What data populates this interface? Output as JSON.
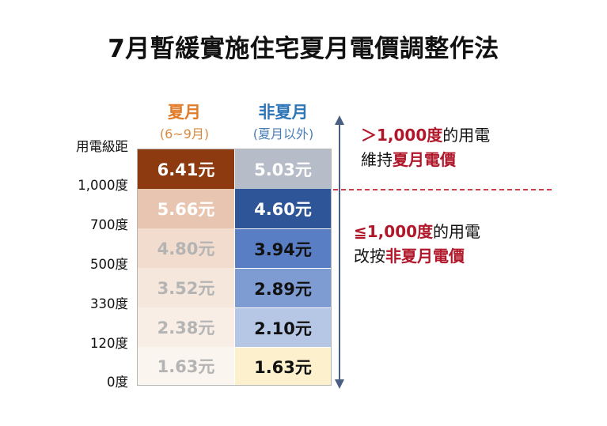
{
  "title": "7月暫緩實施住宅夏月電價調整作法",
  "columns": {
    "summer": {
      "label": "夏月",
      "sub": "(6~9月)"
    },
    "non_summer": {
      "label": "非夏月",
      "sub": "(夏月以外)"
    }
  },
  "tier_header": "用電級距",
  "tiers": [
    "1,000度",
    "700度",
    "500度",
    "330度",
    "120度",
    "0度"
  ],
  "rows": [
    {
      "summer": "6.41元",
      "non_summer": "5.03元"
    },
    {
      "summer": "5.66元",
      "non_summer": "4.60元"
    },
    {
      "summer": "4.80元",
      "non_summer": "3.94元"
    },
    {
      "summer": "3.52元",
      "non_summer": "2.89元"
    },
    {
      "summer": "2.38元",
      "non_summer": "2.10元"
    },
    {
      "summer": "1.63元",
      "non_summer": "1.63元"
    }
  ],
  "note_upper": {
    "prefix": "＞1,000度",
    "line1_rest": "的用電",
    "line2_pre": "維持",
    "line2_emph": "夏月電價"
  },
  "note_lower": {
    "prefix": "≦1,000度",
    "line1_rest": "的用電",
    "line2_pre": "改按",
    "line2_emph": "非夏月電價"
  },
  "colors": {
    "summer_label": "#e07b2a",
    "non_summer_label": "#2e75b6",
    "accent_red": "#b0172a",
    "arrow": "#4a5f82"
  }
}
